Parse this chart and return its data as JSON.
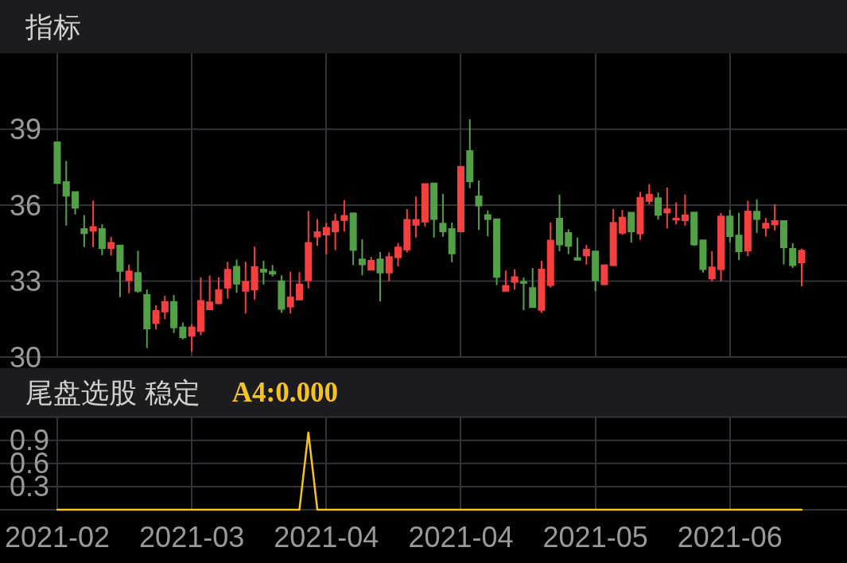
{
  "chart_data": [
    {
      "type": "candlestick",
      "title": "指标",
      "categories": [
        "2021-02",
        null,
        null,
        null,
        null,
        null,
        null,
        null,
        null,
        null,
        null,
        null,
        null,
        null,
        null,
        "2021-03",
        null,
        null,
        null,
        null,
        null,
        null,
        null,
        null,
        null,
        null,
        null,
        null,
        null,
        null,
        "2021-04",
        null,
        null,
        null,
        null,
        null,
        null,
        null,
        null,
        null,
        null,
        null,
        null,
        null,
        null,
        "2021-04",
        null,
        null,
        null,
        null,
        null,
        null,
        null,
        null,
        null,
        null,
        null,
        null,
        null,
        null,
        "2021-05",
        null,
        null,
        null,
        null,
        null,
        null,
        null,
        null,
        null,
        null,
        null,
        null,
        null,
        null,
        "2021-06",
        null,
        null,
        null,
        null,
        null,
        null,
        null,
        null
      ],
      "ohlc": [
        [
          38.51,
          38.51,
          36.84,
          36.84
        ],
        [
          36.94,
          37.74,
          35.19,
          36.34
        ],
        [
          36.55,
          36.55,
          35.63,
          35.87
        ],
        [
          35.09,
          35.61,
          34.34,
          34.86
        ],
        [
          34.96,
          36.18,
          34.34,
          35.17
        ],
        [
          35.09,
          35.25,
          34.02,
          34.27
        ],
        [
          34.27,
          34.74,
          34.01,
          34.54
        ],
        [
          34.44,
          34.44,
          32.37,
          33.37
        ],
        [
          33.0,
          33.65,
          32.52,
          33.42
        ],
        [
          33.35,
          34.2,
          32.54,
          32.58
        ],
        [
          32.48,
          32.67,
          30.36,
          31.1
        ],
        [
          31.31,
          32.04,
          31.1,
          31.85
        ],
        [
          31.77,
          32.42,
          31.5,
          32.21
        ],
        [
          32.21,
          32.45,
          30.95,
          31.14
        ],
        [
          31.2,
          31.37,
          30.7,
          30.75
        ],
        [
          30.81,
          31.3,
          30.21,
          31.2
        ],
        [
          31.0,
          33.15,
          30.86,
          32.25
        ],
        [
          31.85,
          33.22,
          31.85,
          32.19
        ],
        [
          32.1,
          33.15,
          32.08,
          32.67
        ],
        [
          32.71,
          33.76,
          32.31,
          33.48
        ],
        [
          33.6,
          33.85,
          32.54,
          32.87
        ],
        [
          32.58,
          33.76,
          31.72,
          33.0
        ],
        [
          32.64,
          34.36,
          32.27,
          33.59
        ],
        [
          33.49,
          33.81,
          32.87,
          33.34
        ],
        [
          33.4,
          33.64,
          33.18,
          33.26
        ],
        [
          33.02,
          33.23,
          31.75,
          31.87
        ],
        [
          31.96,
          33.37,
          31.72,
          32.39
        ],
        [
          32.24,
          33.35,
          32.24,
          32.9
        ],
        [
          33.0,
          35.77,
          32.72,
          34.54
        ],
        [
          34.73,
          35.45,
          34.4,
          34.96
        ],
        [
          34.81,
          35.3,
          34.06,
          35.14
        ],
        [
          34.93,
          35.67,
          34.22,
          35.39
        ],
        [
          35.38,
          36.2,
          34.96,
          35.61
        ],
        [
          35.71,
          35.71,
          33.63,
          34.2
        ],
        [
          33.89,
          34.66,
          33.23,
          33.63
        ],
        [
          33.42,
          33.96,
          33.42,
          33.83
        ],
        [
          33.89,
          34.15,
          32.2,
          33.31
        ],
        [
          33.31,
          34.13,
          33.0,
          33.98
        ],
        [
          33.91,
          34.5,
          33.59,
          34.36
        ],
        [
          34.22,
          35.84,
          34.14,
          35.45
        ],
        [
          35.19,
          36.34,
          34.72,
          35.45
        ],
        [
          35.32,
          36.86,
          35.16,
          36.86
        ],
        [
          36.89,
          36.89,
          34.72,
          35.42
        ],
        [
          35.3,
          36.44,
          34.75,
          34.93
        ],
        [
          35.09,
          35.32,
          33.75,
          34.06
        ],
        [
          34.93,
          37.55,
          34.93,
          37.55
        ],
        [
          38.17,
          39.39,
          36.67,
          36.91
        ],
        [
          36.38,
          36.97,
          35.03,
          35.95
        ],
        [
          35.64,
          35.79,
          34.77,
          35.42
        ],
        [
          35.47,
          35.47,
          32.84,
          33.13
        ],
        [
          32.58,
          33.42,
          32.58,
          32.84
        ],
        [
          32.94,
          33.47,
          32.66,
          33.19
        ],
        [
          33.0,
          33.14,
          31.85,
          32.9
        ],
        [
          32.76,
          33.52,
          31.94,
          31.94
        ],
        [
          31.83,
          33.8,
          31.75,
          33.49
        ],
        [
          32.81,
          35.32,
          32.74,
          34.63
        ],
        [
          35.5,
          36.42,
          34.18,
          34.41
        ],
        [
          34.93,
          35.05,
          34.07,
          34.36
        ],
        [
          33.94,
          34.72,
          33.81,
          33.81
        ],
        [
          33.98,
          34.43,
          33.65,
          34.27
        ],
        [
          34.2,
          34.2,
          32.61,
          33.0
        ],
        [
          32.84,
          33.66,
          32.84,
          33.66
        ],
        [
          33.6,
          35.85,
          33.6,
          35.33
        ],
        [
          34.88,
          35.8,
          34.84,
          35.54
        ],
        [
          35.73,
          35.73,
          34.52,
          34.93
        ],
        [
          34.85,
          36.52,
          34.64,
          36.32
        ],
        [
          36.13,
          36.83,
          36.03,
          36.45
        ],
        [
          36.31,
          36.5,
          35.43,
          35.58
        ],
        [
          35.68,
          36.7,
          35.09,
          35.87
        ],
        [
          35.4,
          36.11,
          35.24,
          35.5
        ],
        [
          35.37,
          36.42,
          35.19,
          35.63
        ],
        [
          35.74,
          35.74,
          34.39,
          34.41
        ],
        [
          34.64,
          34.64,
          33.34,
          33.44
        ],
        [
          33.08,
          34.18,
          33.0,
          33.57
        ],
        [
          33.44,
          35.69,
          33.0,
          35.58
        ],
        [
          35.58,
          35.81,
          34.53,
          34.74
        ],
        [
          34.83,
          35.7,
          33.83,
          34.15
        ],
        [
          34.17,
          36.17,
          33.99,
          35.78
        ],
        [
          35.77,
          36.23,
          34.9,
          35.42
        ],
        [
          35.07,
          35.5,
          34.77,
          35.3
        ],
        [
          35.21,
          36.04,
          35.0,
          35.4
        ],
        [
          35.4,
          35.4,
          33.66,
          34.3
        ],
        [
          34.3,
          34.49,
          33.52,
          33.6
        ],
        [
          33.71,
          34.28,
          32.79,
          34.23
        ]
      ],
      "colors": [
        "#52a147",
        "#52a147",
        "#52a147",
        "#52a147",
        "#f5403f",
        "#52a147",
        "#f5403f",
        "#52a147",
        "#f5403f",
        "#52a147",
        "#52a147",
        "#f5403f",
        "#f5403f",
        "#52a147",
        "#52a147",
        "#f5403f",
        "#f5403f",
        "#f5403f",
        "#f5403f",
        "#f5403f",
        "#52a147",
        "#f5403f",
        "#f5403f",
        "#52a147",
        "#52a147",
        "#52a147",
        "#f5403f",
        "#f5403f",
        "#f5403f",
        "#f5403f",
        "#f5403f",
        "#f5403f",
        "#f5403f",
        "#52a147",
        "#52a147",
        "#f5403f",
        "#52a147",
        "#f5403f",
        "#f5403f",
        "#f5403f",
        "#f5403f",
        "#f5403f",
        "#52a147",
        "#52a147",
        "#52a147",
        "#f5403f",
        "#52a147",
        "#52a147",
        "#52a147",
        "#52a147",
        "#f5403f",
        "#f5403f",
        "#52a147",
        "#52a147",
        "#f5403f",
        "#f5403f",
        "#52a147",
        "#52a147",
        "#52a147",
        "#f5403f",
        "#52a147",
        "#f5403f",
        "#f5403f",
        "#f5403f",
        "#52a147",
        "#f5403f",
        "#f5403f",
        "#52a147",
        "#f5403f",
        "#f5403f",
        "#f5403f",
        "#52a147",
        "#52a147",
        "#f5403f",
        "#f5403f",
        "#52a147",
        "#52a147",
        "#f5403f",
        "#52a147",
        "#f5403f",
        "#f5403f",
        "#52a147",
        "#52a147",
        "#f5403f"
      ],
      "ylim": [
        30,
        42
      ],
      "yticks": [
        30,
        33,
        36,
        39
      ],
      "grid": true,
      "tick_labels": "y"
    },
    {
      "type": "line",
      "title": "尾盘选股 稳定",
      "categories": [
        "2021-02",
        null,
        null,
        null,
        null,
        null,
        null,
        null,
        null,
        null,
        null,
        null,
        null,
        null,
        null,
        "2021-03",
        null,
        null,
        null,
        null,
        null,
        null,
        null,
        null,
        null,
        null,
        null,
        null,
        null,
        null,
        "2021-04",
        null,
        null,
        null,
        null,
        null,
        null,
        null,
        null,
        null,
        null,
        null,
        null,
        null,
        null,
        "2021-04",
        null,
        null,
        null,
        null,
        null,
        null,
        null,
        null,
        null,
        null,
        null,
        null,
        null,
        null,
        "2021-05",
        null,
        null,
        null,
        null,
        null,
        null,
        null,
        null,
        null,
        null,
        null,
        null,
        null,
        null,
        "2021-06",
        null,
        null,
        null,
        null,
        null,
        null,
        null,
        null
      ],
      "series": [
        {
          "name": "A4:0.000",
          "color": "#f6c21c",
          "values": [
            0,
            0,
            0,
            0,
            0,
            0,
            0,
            0,
            0,
            0,
            0,
            0,
            0,
            0,
            0,
            0,
            0,
            0,
            0,
            0,
            0,
            0,
            0,
            0,
            0,
            0,
            0,
            0,
            1,
            0,
            0,
            0,
            0,
            0,
            0,
            0,
            0,
            0,
            0,
            0,
            0,
            0,
            0,
            0,
            0,
            0,
            0,
            0,
            0,
            0,
            0,
            0,
            0,
            0,
            0,
            0,
            0,
            0,
            0,
            0,
            0,
            0,
            0,
            0,
            0,
            0,
            0,
            0,
            0,
            0,
            0,
            0,
            0,
            0,
            0,
            0,
            0,
            0,
            0,
            0,
            0,
            0,
            0,
            0
          ]
        }
      ],
      "ylim": [
        0,
        1.2
      ],
      "yticks": [
        {
          "value": 0,
          "label": null
        },
        0.3,
        0.6,
        0.9,
        {
          "value": 1.2,
          "label": null
        }
      ],
      "grid": true,
      "legend": "top left"
    }
  ]
}
